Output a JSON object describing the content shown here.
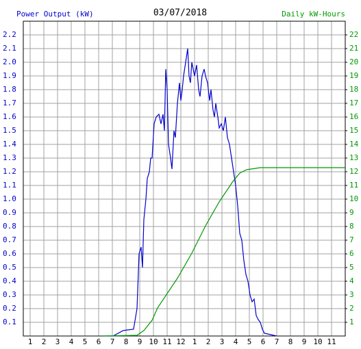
{
  "chart_data": {
    "type": "line",
    "title": "03/07/2018",
    "ylabel": "Power Output (kW)",
    "y2label": "Daily kW-Hours",
    "grid": true,
    "xlim": [
      0.5,
      24
    ],
    "xticks": [
      1,
      2,
      3,
      4,
      5,
      6,
      7,
      8,
      9,
      10,
      11,
      12,
      {
        "value": 13,
        "label": "1"
      },
      {
        "value": 14,
        "label": "2"
      },
      {
        "value": 15,
        "label": "3"
      },
      {
        "value": 16,
        "label": "4"
      },
      {
        "value": 17,
        "label": "5"
      },
      {
        "value": 18,
        "label": "6"
      },
      {
        "value": 19,
        "label": "7"
      },
      {
        "value": 20,
        "label": "8"
      },
      {
        "value": 21,
        "label": "9"
      },
      {
        "value": 22,
        "label": "10"
      },
      {
        "value": 23,
        "label": "11"
      }
    ],
    "ylim": [
      0,
      2.3
    ],
    "yticks": [
      0.1,
      0.2,
      0.3,
      0.4,
      0.5,
      0.6,
      0.7,
      0.8,
      0.9,
      {
        "value": 1,
        "label": "1.0"
      },
      1.1,
      1.2,
      1.3,
      1.4,
      1.5,
      1.6,
      1.7,
      1.8,
      1.9,
      {
        "value": 2,
        "label": "2.0"
      },
      2.1,
      2.2
    ],
    "y2lim": [
      0,
      23
    ],
    "y2ticks": [
      1,
      2,
      3,
      4,
      5,
      6,
      7,
      8,
      9,
      10,
      11,
      12,
      13,
      14,
      15,
      16,
      17,
      18,
      19,
      20,
      21,
      22
    ],
    "series": [
      {
        "color": "#0000cc",
        "x": [
          6.3,
          7.05,
          7.8,
          8.55,
          8.8,
          8.95,
          9.1,
          9.2,
          9.3,
          9.45,
          9.55,
          9.7,
          9.8,
          9.9,
          10.05,
          10.2,
          10.4,
          10.55,
          10.7,
          10.8,
          10.9,
          11.0,
          11.1,
          11.25,
          11.35,
          11.5,
          11.6,
          11.75,
          11.9,
          12.0,
          12.1,
          12.2,
          12.35,
          12.5,
          12.6,
          12.7,
          12.8,
          12.9,
          13.0,
          13.15,
          13.3,
          13.4,
          13.55,
          13.7,
          13.8,
          13.95,
          14.1,
          14.2,
          14.35,
          14.45,
          14.55,
          14.7,
          14.8,
          14.95,
          15.1,
          15.25,
          15.4,
          15.55,
          15.7,
          15.85,
          16.0,
          16.15,
          16.3,
          16.45,
          16.6,
          16.75,
          16.9,
          17.05,
          17.2,
          17.35,
          17.5,
          17.65,
          17.8,
          17.95,
          18.1,
          18.55,
          19.0
        ],
        "values": [
          0,
          0,
          0.04,
          0.05,
          0.2,
          0.6,
          0.65,
          0.5,
          0.85,
          1.0,
          1.15,
          1.2,
          1.3,
          1.3,
          1.55,
          1.6,
          1.62,
          1.55,
          1.62,
          1.5,
          1.95,
          1.8,
          1.4,
          1.3,
          1.22,
          1.5,
          1.45,
          1.7,
          1.85,
          1.72,
          1.8,
          1.9,
          2.0,
          2.1,
          1.9,
          1.85,
          2.0,
          1.95,
          1.9,
          1.98,
          1.8,
          1.75,
          1.9,
          1.95,
          1.9,
          1.85,
          1.72,
          1.8,
          1.65,
          1.6,
          1.7,
          1.6,
          1.52,
          1.55,
          1.5,
          1.6,
          1.45,
          1.4,
          1.3,
          1.2,
          1.1,
          0.95,
          0.75,
          0.7,
          0.55,
          0.45,
          0.4,
          0.3,
          0.25,
          0.27,
          0.15,
          0.12,
          0.1,
          0.05,
          0.02,
          0.01,
          0
        ]
      },
      {
        "color": "#009900",
        "axis": "y2",
        "x": [
          6.3,
          8.8,
          9.3,
          9.9,
          10.3,
          11.3,
          11.8,
          12.8,
          13.8,
          14.8,
          15.8,
          16.3,
          16.8,
          17.8,
          24
        ],
        "values": [
          0,
          0.05,
          0.4,
          1.15,
          2.05,
          3.55,
          4.3,
          6.05,
          8.05,
          9.8,
          11.3,
          11.9,
          12.15,
          12.3,
          12.3
        ]
      }
    ]
  }
}
